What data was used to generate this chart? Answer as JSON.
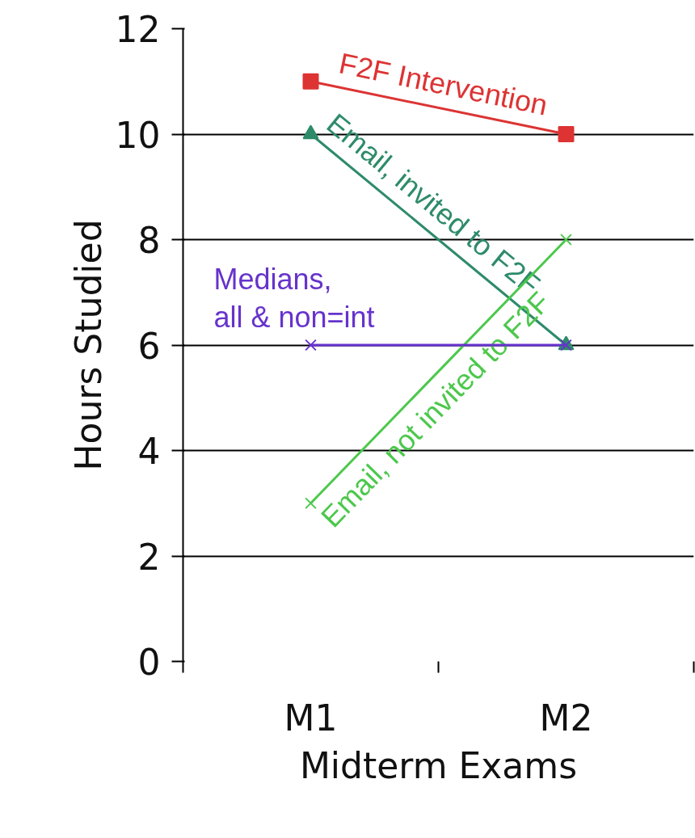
{
  "chart_data": {
    "type": "line",
    "xlabel": "Midterm Exams",
    "ylabel": "Hours Studied",
    "categories": [
      "M1",
      "M2"
    ],
    "ylim": [
      0,
      12
    ],
    "yticks": [
      0,
      2,
      4,
      6,
      8,
      10,
      12
    ],
    "grid": "y",
    "series": [
      {
        "name": "F2F Intervention",
        "color": "#dd3333",
        "marker": "square",
        "values": [
          11,
          10
        ]
      },
      {
        "name": "Email, invited to F2F",
        "color": "#2e8b6a",
        "marker": "triangle",
        "values": [
          10,
          6
        ]
      },
      {
        "name": "Email, not invited to F2F",
        "color": "#4cc84c",
        "marker": "cross",
        "values": [
          3,
          8
        ]
      },
      {
        "name": "Medians,\nall & non=int",
        "color": "#6633cc",
        "marker": "cross",
        "values": [
          6,
          6
        ]
      }
    ]
  }
}
